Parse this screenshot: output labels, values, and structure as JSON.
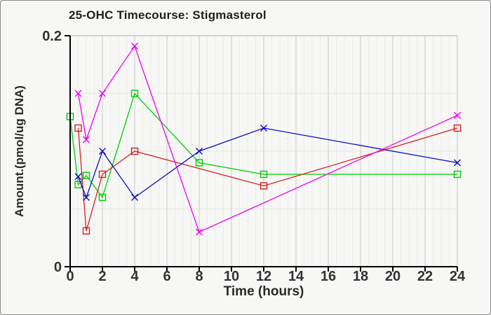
{
  "window": {
    "background": "#f7f7f6",
    "border_color": "#8a8a8a"
  },
  "chart_data": {
    "type": "line",
    "title": "25-OHC Timecourse: Stigmasterol",
    "xlabel": "Time (hours)",
    "ylabel": "Amount.(pmol/ug DNA)",
    "xlim": [
      0,
      24
    ],
    "ylim": [
      0,
      0.2
    ],
    "x_major_ticks": [
      0,
      2,
      4,
      6,
      8,
      10,
      12,
      14,
      16,
      18,
      20,
      22,
      24
    ],
    "x_minor_step": 0.5,
    "y_ticks": [
      {
        "value": 0,
        "label": "0"
      },
      {
        "value": 0.2,
        "label": "0.2"
      }
    ],
    "y_grid_step": 0.05,
    "grid": true,
    "legend_position": "none",
    "series": [
      {
        "id": "green-squares",
        "color": "#00CC00",
        "marker": "square",
        "points": [
          [
            0,
            0.13
          ],
          [
            0.5,
            0.071
          ],
          [
            1,
            0.079
          ],
          [
            2,
            0.06
          ],
          [
            4,
            0.15
          ],
          [
            8,
            0.09
          ],
          [
            12,
            0.08
          ],
          [
            24,
            0.08
          ]
        ]
      },
      {
        "id": "red-squares",
        "color": "#D42020",
        "marker": "square",
        "points": [
          [
            0.5,
            0.12
          ],
          [
            1,
            0.031
          ],
          [
            2,
            0.08
          ],
          [
            4,
            0.1
          ],
          [
            12,
            0.07
          ],
          [
            24,
            0.12
          ]
        ]
      },
      {
        "id": "blue-crosses",
        "color": "#0B0BC4",
        "marker": "x",
        "points": [
          [
            0.5,
            0.078
          ],
          [
            1,
            0.06
          ],
          [
            2,
            0.1
          ],
          [
            4,
            0.06
          ],
          [
            8,
            0.1
          ],
          [
            12,
            0.12
          ],
          [
            24,
            0.09
          ]
        ]
      },
      {
        "id": "magenta-crosses",
        "color": "#EE00EE",
        "marker": "x",
        "points": [
          [
            0.5,
            0.15
          ],
          [
            1,
            0.11
          ],
          [
            2,
            0.15
          ],
          [
            4,
            0.191
          ],
          [
            8,
            0.03
          ],
          [
            24,
            0.131
          ]
        ]
      }
    ],
    "style": {
      "axis_color": "#000000",
      "tick_label_color": "#333333",
      "grid_major_color": "#c8c8c8",
      "grid_minor_color": "#ebebeb",
      "grid_horizontal_color": "#e7e7e7",
      "plot_top_border_color": "#bdbdbd"
    }
  }
}
